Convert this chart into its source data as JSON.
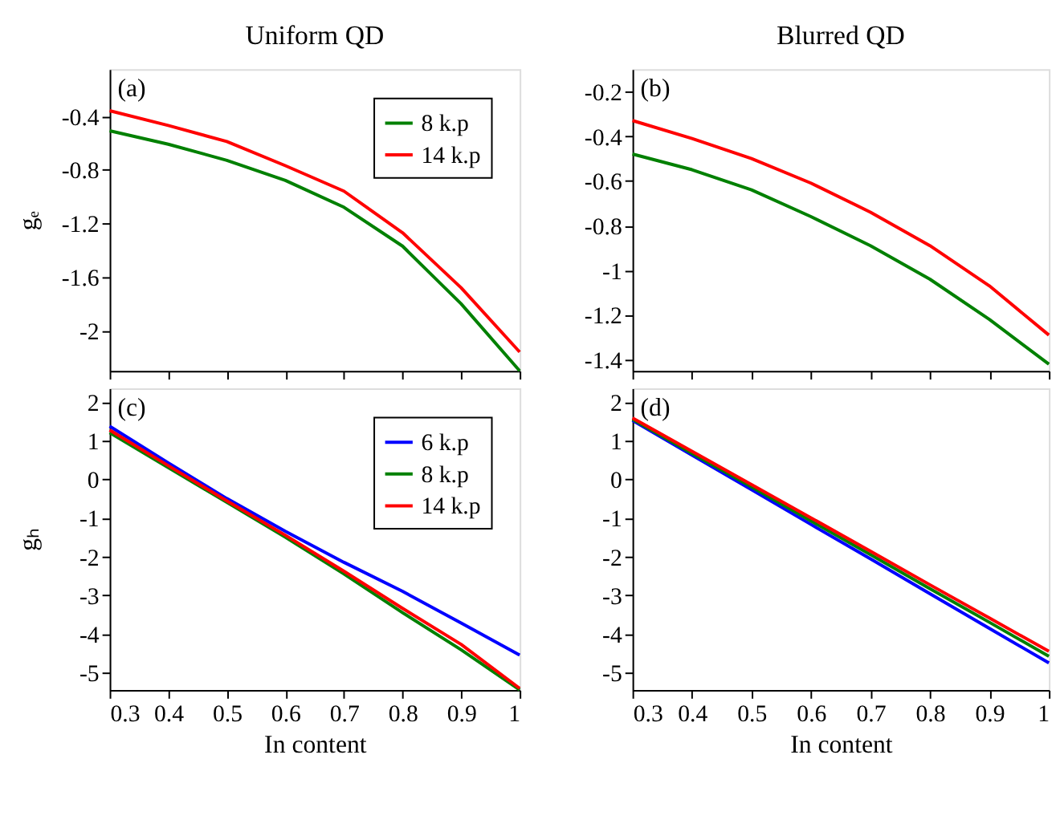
{
  "chart_data": [
    {
      "type": "line",
      "title": "Uniform QD",
      "ylabel": "gₑ",
      "annotations": [
        "(a)"
      ],
      "x": [
        0.3,
        0.4,
        0.5,
        0.6,
        0.7,
        0.8,
        0.9,
        1.0
      ],
      "xlim": [
        0.3,
        1.0
      ],
      "xticks": [
        0.3,
        0.4,
        0.5,
        0.6,
        0.7,
        0.8,
        0.9,
        1
      ],
      "ylim": [
        -2.3,
        -0.05
      ],
      "yticks": [
        -2,
        -1.6,
        -1.2,
        -0.8,
        -0.4
      ],
      "tick_labels": "y",
      "legend": "top right",
      "grid": false,
      "marker": "none",
      "line_style": "solid",
      "series": [
        {
          "name": "8 k.p",
          "color": "#008000",
          "values": [
            -0.51,
            -0.61,
            -0.73,
            -0.88,
            -1.08,
            -1.37,
            -1.8,
            -2.3
          ]
        },
        {
          "name": "14 k.p",
          "color": "#ff0000",
          "values": [
            -0.36,
            -0.47,
            -0.59,
            -0.77,
            -0.96,
            -1.27,
            -1.68,
            -2.16
          ]
        }
      ]
    },
    {
      "type": "line",
      "title": "Blurred QD",
      "annotations": [
        "(b)"
      ],
      "x": [
        0.3,
        0.4,
        0.5,
        0.6,
        0.7,
        0.8,
        0.9,
        1.0
      ],
      "xlim": [
        0.3,
        1.0
      ],
      "xticks": [
        0.3,
        0.4,
        0.5,
        0.6,
        0.7,
        0.8,
        0.9,
        1
      ],
      "ylim": [
        -1.45,
        -0.1
      ],
      "yticks": [
        -1.4,
        -1.2,
        -1,
        -0.8,
        -0.6,
        -0.4,
        -0.2
      ],
      "tick_labels": "y",
      "grid": false,
      "marker": "none",
      "line_style": "solid",
      "series": [
        {
          "color": "#008000",
          "values": [
            -0.48,
            -0.55,
            -0.64,
            -0.76,
            -0.89,
            -1.04,
            -1.22,
            -1.42
          ]
        },
        {
          "color": "#ff0000",
          "values": [
            -0.33,
            -0.41,
            -0.5,
            -0.61,
            -0.74,
            -0.89,
            -1.07,
            -1.29
          ]
        }
      ]
    },
    {
      "type": "line",
      "xlabel": "In content",
      "ylabel": "gₕ",
      "annotations": [
        "(c)"
      ],
      "x": [
        0.3,
        0.4,
        0.5,
        0.6,
        0.7,
        0.8,
        0.9,
        1.0
      ],
      "xlim": [
        0.3,
        1.0
      ],
      "xticks": [
        0.3,
        0.4,
        0.5,
        0.6,
        0.7,
        0.8,
        0.9,
        1
      ],
      "ylim": [
        -5.45,
        2.35
      ],
      "yticks": [
        -5,
        -4,
        -3,
        -2,
        -1,
        0,
        1,
        2
      ],
      "legend": "top right",
      "grid": false,
      "marker": "none",
      "line_style": "solid",
      "series": [
        {
          "name": "6 k.p",
          "color": "#0000ff",
          "values": [
            1.37,
            0.42,
            -0.5,
            -1.35,
            -2.15,
            -2.9,
            -3.72,
            -4.55
          ]
        },
        {
          "name": "8 k.p",
          "color": "#008000",
          "values": [
            1.2,
            0.3,
            -0.6,
            -1.5,
            -2.45,
            -3.45,
            -4.41,
            -5.45
          ]
        },
        {
          "name": "14 k.p",
          "color": "#ff0000",
          "values": [
            1.27,
            0.35,
            -0.56,
            -1.45,
            -2.38,
            -3.34,
            -4.27,
            -5.41
          ]
        }
      ]
    },
    {
      "type": "line",
      "xlabel": "In  content",
      "annotations": [
        "(d)"
      ],
      "x": [
        0.3,
        0.4,
        0.5,
        0.6,
        0.7,
        0.8,
        0.9,
        1.0
      ],
      "xlim": [
        0.3,
        1.0
      ],
      "xticks": [
        0.3,
        0.4,
        0.5,
        0.6,
        0.7,
        0.8,
        0.9,
        1
      ],
      "ylim": [
        -5.45,
        2.35
      ],
      "yticks": [
        -5,
        -4,
        -3,
        -2,
        -1,
        0,
        1,
        2
      ],
      "grid": false,
      "marker": "none",
      "line_style": "solid",
      "series": [
        {
          "color": "#0000ff",
          "values": [
            1.52,
            0.62,
            -0.27,
            -1.17,
            -2.06,
            -2.96,
            -3.86,
            -4.75
          ]
        },
        {
          "color": "#008000",
          "values": [
            1.55,
            0.67,
            -0.2,
            -1.08,
            -1.95,
            -2.83,
            -3.7,
            -4.58
          ]
        },
        {
          "color": "#ff0000",
          "values": [
            1.58,
            0.72,
            -0.14,
            -1.0,
            -1.86,
            -2.73,
            -3.59,
            -4.45
          ]
        }
      ]
    }
  ]
}
